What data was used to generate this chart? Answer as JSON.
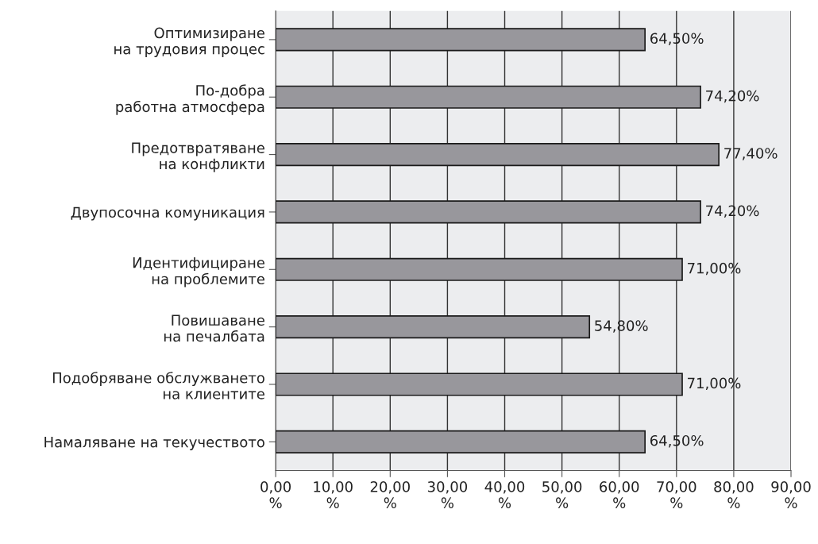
{
  "chart_data": {
    "type": "bar",
    "orientation": "horizontal",
    "categories": [
      "Оптимизиране\nна трудовия процес",
      "По-добра\nработна атмосфера",
      "Предотвратяване\nна конфликти",
      "Двупосочна комуникация",
      "Идентифициране\nна проблемите",
      "Повишаване\nна печалбата",
      "Подобряване обслужването\nна клиентите",
      "Намаляване на текучеството"
    ],
    "values": [
      64.5,
      74.2,
      77.4,
      74.2,
      71.0,
      54.8,
      71.0,
      64.5
    ],
    "value_labels": [
      "64,50%",
      "74,20%",
      "77,40%",
      "74,20%",
      "71,00%",
      "54,80%",
      "71,00%",
      "64,50%"
    ],
    "color": "#98979c",
    "xlim": [
      0,
      90
    ],
    "xticks": [
      {
        "value": 0,
        "label": "0,00\n%"
      },
      {
        "value": 10,
        "label": "10,00\n%"
      },
      {
        "value": 20,
        "label": "20,00\n%"
      },
      {
        "value": 30,
        "label": "30,00\n%"
      },
      {
        "value": 40,
        "label": "40,00\n%"
      },
      {
        "value": 50,
        "label": "50,00\n%"
      },
      {
        "value": 60,
        "label": "60,00\n%"
      },
      {
        "value": 70,
        "label": "70,00\n%"
      },
      {
        "value": 80,
        "label": "80,00\n%"
      },
      {
        "value": 90,
        "label": "90,00\n%"
      }
    ],
    "grid": "x",
    "legend": false
  }
}
